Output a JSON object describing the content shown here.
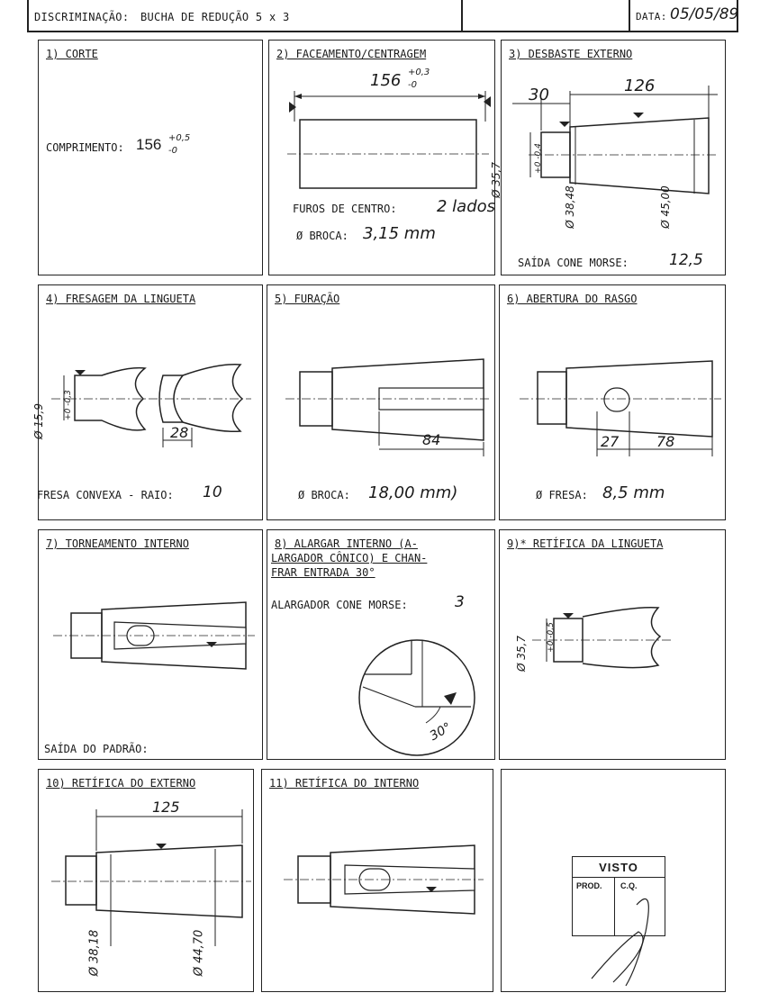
{
  "header": {
    "discrimination_label": "DISCRIMINAÇÃO:",
    "discrimination_value": "BUCHA DE REDUÇÃO  5 x 3",
    "date_label": "DATA:",
    "date_value": "05/05/89"
  },
  "cells": [
    {
      "title": "1) CORTE",
      "label": "COMPRIMENTO:",
      "value": "156",
      "tol_plus": "+0,5",
      "tol_minus": "-0"
    },
    {
      "title": "2) FACEAMENTO/CENTRAGEM",
      "dim": "156",
      "tol_plus": "+0,3",
      "tol_minus": "-0",
      "label1": "FUROS DE CENTRO:",
      "value1": "2 lados",
      "label2": "Ø BROCA:",
      "value2": "3,15 mm"
    },
    {
      "title": "3) DESBASTE EXTERNO",
      "dim1": "30",
      "dim2": "126",
      "d1": "Ø 35,7",
      "d1_tol": "+0 -0,4",
      "d2": "Ø 38,48",
      "d3": "Ø 45,00",
      "label": "SAÍDA CONE MORSE:",
      "value": "12,5"
    },
    {
      "title": "4) FRESAGEM DA LINGUETA",
      "d1": "Ø 15,9",
      "d1_tol": "+0 -0,3",
      "dim": "28",
      "label": "FRESA CONVEXA - RAIO:",
      "value": "10"
    },
    {
      "title": "5) FURAÇÃO",
      "dim": "84",
      "label": "Ø BROCA:",
      "value": "18,00 mm)"
    },
    {
      "title": "6) ABERTURA DO RASGO",
      "dim1": "27",
      "dim2": "78",
      "label": "Ø FRESA:",
      "value": "8,5 mm"
    },
    {
      "title": "7) TORNEAMENTO INTERNO",
      "label": "SAÍDA DO PADRÃO:"
    },
    {
      "title_lines": [
        "8) ALARGAR INTERNO (A-",
        "LARGADOR CÔNICO) E CHAN-",
        "FRAR ENTRADA 30°"
      ],
      "label": "ALARGADOR CONE MORSE:",
      "value": "3",
      "angle": "30°"
    },
    {
      "title": "9)* RETÍFICA DA LINGUETA",
      "d1": "Ø 35,7",
      "d1_tol": "+0 -0,5"
    },
    {
      "title": "10) RETÍFICA DO EXTERNO",
      "dim": "125",
      "d1": "Ø 38,18",
      "d2": "Ø 44,70"
    },
    {
      "title": "11) RETÍFICA DO INTERNO"
    },
    {
      "stamp_title": "VISTO",
      "stamp_prod": "PROD.",
      "stamp_cq": "C.Q."
    }
  ]
}
